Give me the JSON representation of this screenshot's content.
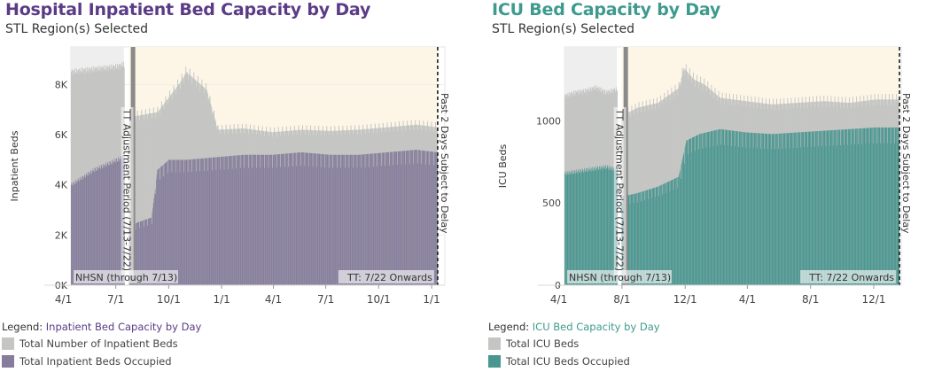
{
  "chart_data": [
    {
      "type": "area",
      "title": "Hospital Inpatient Bed Capacity by Day",
      "subtitle": "STL Region(s) Selected",
      "ylabel": "Inpatient Beds",
      "ylim": [
        0,
        9500
      ],
      "yticks": [
        0,
        2000,
        4000,
        6000,
        8000
      ],
      "ytick_labels": [
        "0K",
        "2K",
        "4K",
        "6K",
        "8K"
      ],
      "xtick_labels": [
        "4/1",
        "7/1",
        "10/1",
        "1/1",
        "4/1",
        "7/1",
        "10/1",
        "1/1"
      ],
      "x_total_days": 650,
      "xtick_days": [
        -13,
        78,
        170,
        262,
        352,
        443,
        535,
        627
      ],
      "periods": {
        "nhsn_end_day": 92,
        "tt_start_day": 101,
        "delay_start_day": 636,
        "end_day": 638
      },
      "annotations": {
        "adjustment": "TT Adjustment Period (7/13-7/22)",
        "nhsn": "NHSN (through 7/13)",
        "tt": "TT: 7/22 Onwards",
        "delay": "Past 2 Days Subject to Delay"
      },
      "series": [
        {
          "name": "Total Number of Inpatient Beds",
          "x": [
            0,
            20,
            40,
            60,
            80,
            92,
            101,
            150,
            190,
            200,
            215,
            235,
            255,
            300,
            350,
            400,
            450,
            500,
            550,
            600,
            636
          ],
          "values": [
            8500,
            8550,
            8600,
            8650,
            8700,
            8800,
            6700,
            6900,
            8100,
            8500,
            8200,
            7800,
            6200,
            6250,
            6100,
            6200,
            6150,
            6200,
            6300,
            6400,
            6300
          ]
        },
        {
          "name": "Total Inpatient Beds Occupied",
          "x": [
            0,
            20,
            40,
            60,
            80,
            92,
            101,
            115,
            140,
            150,
            170,
            200,
            250,
            300,
            350,
            400,
            450,
            500,
            550,
            600,
            636
          ],
          "values": [
            4000,
            4300,
            4600,
            4800,
            5000,
            5100,
            2300,
            2500,
            2700,
            4600,
            5000,
            5000,
            5100,
            5200,
            5200,
            5300,
            5200,
            5200,
            5300,
            5400,
            5300
          ]
        }
      ],
      "legend": {
        "label": "Legend:",
        "title": "Inpatient Bed Capacity by Day",
        "items": [
          "Total Number of Inpatient Beds",
          "Total Inpatient Beds Occupied"
        ]
      },
      "colors": {
        "title": "#5b3b86",
        "total": "#c5c6c4",
        "occupied": "#857d9b",
        "tt_bg": "#fdf6e7",
        "nhsn_bg": "#eeeeee"
      }
    },
    {
      "type": "area",
      "title": "ICU Bed Capacity by Day",
      "subtitle": "STL Region(s) Selected",
      "ylabel": "ICU Beds",
      "ylim": [
        0,
        1450
      ],
      "yticks": [
        0,
        500,
        1000
      ],
      "ytick_labels": [
        "0",
        "500",
        "1000"
      ],
      "xtick_labels": [
        "4/1",
        "8/1",
        "12/1",
        "4/1",
        "8/1",
        "12/1"
      ],
      "x_total_days": 650,
      "xtick_days": [
        -11,
        111,
        233,
        353,
        475,
        597
      ],
      "periods": {
        "nhsn_end_day": 101,
        "tt_start_day": 110,
        "delay_start_day": 645,
        "end_day": 647
      },
      "annotations": {
        "adjustment": "TT Adjustment Period (7/13-7/22)",
        "nhsn": "NHSN (through 7/13)",
        "tt": "TT: 7/22 Onwards",
        "delay": "Past 2 Days Subject to Delay"
      },
      "series": [
        {
          "name": "Total ICU Beds",
          "x": [
            0,
            20,
            40,
            60,
            80,
            101,
            110,
            140,
            180,
            220,
            230,
            250,
            270,
            300,
            350,
            400,
            450,
            500,
            550,
            600,
            645
          ],
          "values": [
            1150,
            1170,
            1180,
            1200,
            1170,
            1190,
            1030,
            1080,
            1110,
            1200,
            1320,
            1250,
            1220,
            1140,
            1120,
            1100,
            1110,
            1120,
            1110,
            1130,
            1130
          ]
        },
        {
          "name": "Total ICU Beds Occupied",
          "x": [
            0,
            20,
            40,
            60,
            80,
            101,
            110,
            140,
            180,
            220,
            235,
            260,
            300,
            350,
            400,
            450,
            500,
            550,
            600,
            645
          ],
          "values": [
            680,
            690,
            700,
            710,
            720,
            700,
            540,
            560,
            600,
            660,
            880,
            920,
            950,
            930,
            920,
            930,
            940,
            950,
            960,
            960
          ]
        }
      ],
      "legend": {
        "label": "Legend:",
        "title": "ICU Bed Capacity by Day",
        "items": [
          "Total ICU Beds",
          "Total ICU Beds Occupied"
        ]
      },
      "colors": {
        "title": "#3e9a8e",
        "total": "#c5c6c4",
        "occupied": "#4a9690",
        "tt_bg": "#fdf6e7",
        "nhsn_bg": "#eeeeee"
      }
    }
  ]
}
